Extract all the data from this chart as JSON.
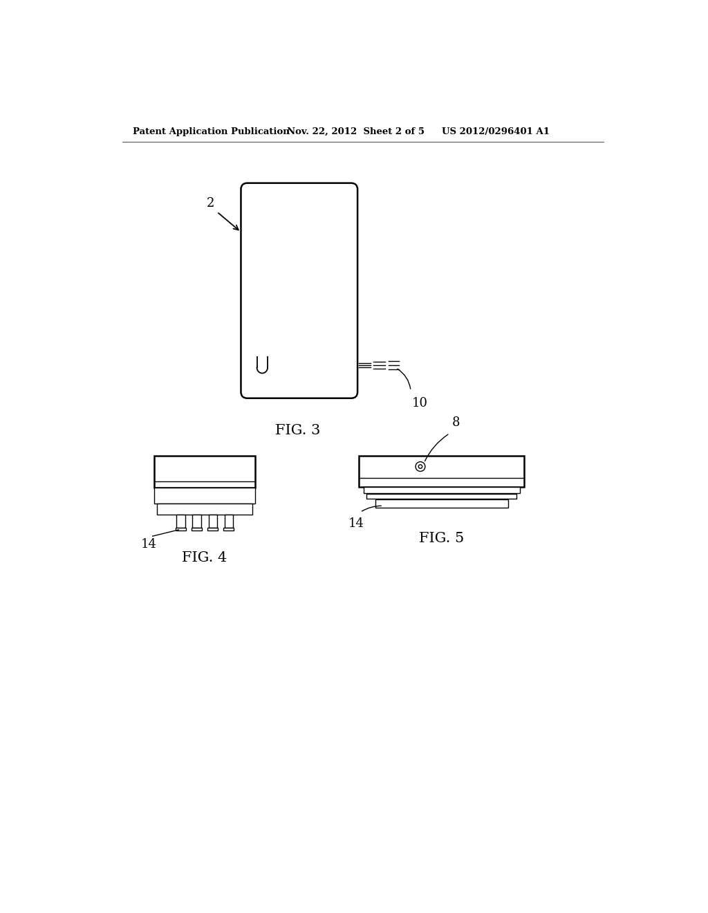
{
  "bg_color": "#ffffff",
  "line_color": "#000000",
  "header_left": "Patent Application Publication",
  "header_mid": "Nov. 22, 2012  Sheet 2 of 5",
  "header_right": "US 2012/0296401 A1",
  "fig3_label": "FIG. 3",
  "fig4_label": "FIG. 4",
  "fig5_label": "FIG. 5",
  "label_2": "2",
  "label_10": "10",
  "label_14a": "14",
  "label_14b": "14",
  "label_8": "8"
}
